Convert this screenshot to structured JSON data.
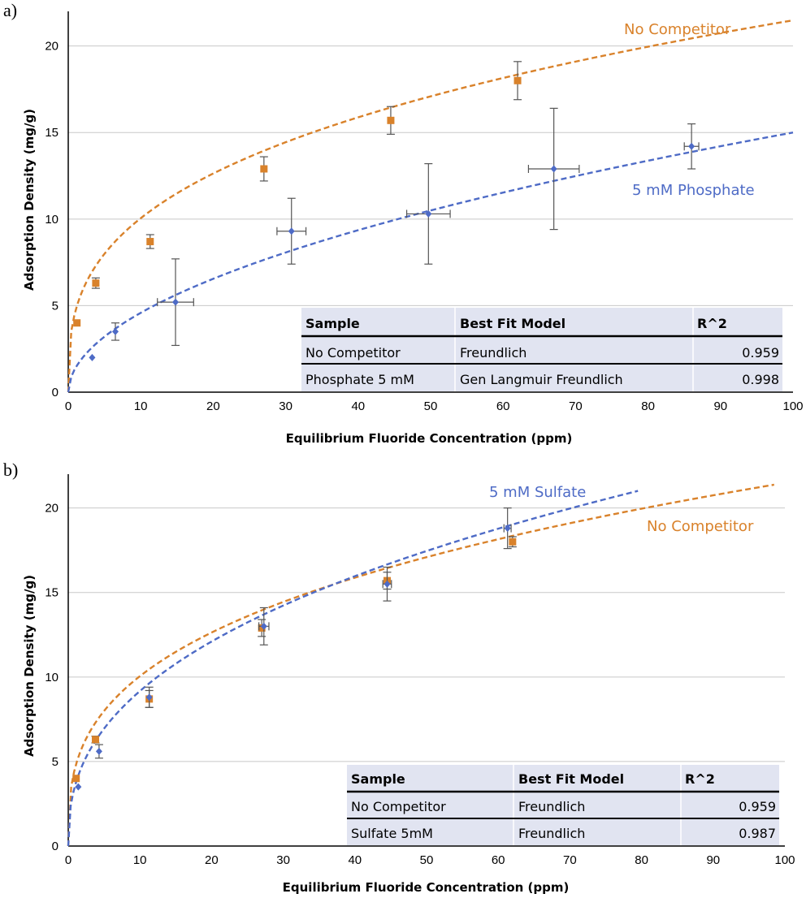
{
  "chart_data": [
    {
      "type": "scatter",
      "panel_label": "a)",
      "xlabel": "Equilibrium Fluoride Concentration (ppm)",
      "ylabel": "Adsorption Density (mg/g)",
      "xlim": [
        0,
        100
      ],
      "ylim": [
        0,
        22
      ],
      "x_ticks": [
        "0",
        "10",
        "20",
        "30",
        "40",
        "50",
        "60",
        "70",
        "80",
        "90",
        "100"
      ],
      "y_ticks": [
        "0",
        "5",
        "10",
        "15",
        "20"
      ],
      "grid": true,
      "series": [
        {
          "name": "No Competitor",
          "color": "#d9822b",
          "marker": "square",
          "points": [
            {
              "x": 1.2,
              "y": 4.0,
              "yerr": 0,
              "xerr": 0
            },
            {
              "x": 3.8,
              "y": 6.3,
              "yerr": 0.3,
              "xerr": 0
            },
            {
              "x": 11.3,
              "y": 8.7,
              "yerr": 0.4,
              "xerr": 0
            },
            {
              "x": 27.0,
              "y": 12.9,
              "yerr": 0.7,
              "xerr": 0
            },
            {
              "x": 44.5,
              "y": 15.7,
              "yerr": 0.8,
              "xerr": 0
            },
            {
              "x": 62.0,
              "y": 18.0,
              "yerr": 1.1,
              "xerr": 0
            }
          ],
          "fit": {
            "model": "freundlich",
            "K": 4.7,
            "n": 0.33,
            "xmax": 100
          }
        },
        {
          "name": "5 mM Phosphate",
          "color": "#4e6bc6",
          "marker": "diamond",
          "points": [
            {
              "x": 3.3,
              "y": 2.0,
              "yerr": 0,
              "xerr": 0
            },
            {
              "x": 6.5,
              "y": 3.5,
              "yerr": 0.5,
              "xerr": 0
            },
            {
              "x": 14.8,
              "y": 5.2,
              "yerr": 2.5,
              "xerr": 2.5
            },
            {
              "x": 30.8,
              "y": 9.3,
              "yerr": 1.9,
              "xerr": 2.0
            },
            {
              "x": 49.7,
              "y": 10.3,
              "yerr": 2.9,
              "xerr": 3.0
            },
            {
              "x": 67.0,
              "y": 12.9,
              "yerr": 3.5,
              "xerr": 3.5
            },
            {
              "x": 86.0,
              "y": 14.2,
              "yerr": 1.3,
              "xerr": 1.0
            }
          ],
          "fit": {
            "model": "freundlich",
            "K": 1.4,
            "n": 0.515,
            "xmax": 100
          }
        }
      ],
      "curve_labels": [
        "No Competitor",
        "5 mM Phosphate"
      ],
      "table": {
        "headers": [
          "Sample",
          "Best Fit Model",
          "R^2"
        ],
        "rows": [
          {
            "sample": "No Competitor",
            "model": "Freundlich",
            "r2": "0.959",
            "color": "#d9822b"
          },
          {
            "sample": "Phosphate 5 mM",
            "model": "Gen Langmuir Freundlich",
            "r2": "0.998",
            "color": "#4e6bc6"
          }
        ]
      }
    },
    {
      "type": "scatter",
      "panel_label": "b)",
      "xlabel": "Equilibrium Fluoride Concentration (ppm)",
      "ylabel": "Adsorption Density (mg/g)",
      "xlim": [
        0,
        100
      ],
      "ylim": [
        0,
        22
      ],
      "x_ticks": [
        "0",
        "10",
        "20",
        "30",
        "40",
        "50",
        "60",
        "70",
        "80",
        "90",
        "100"
      ],
      "y_ticks": [
        "0",
        "5",
        "10",
        "15",
        "20"
      ],
      "grid": true,
      "series": [
        {
          "name": "No Competitor",
          "color": "#d9822b",
          "marker": "square",
          "points": [
            {
              "x": 1.1,
              "y": 4.0,
              "yerr": 0,
              "xerr": 0
            },
            {
              "x": 3.8,
              "y": 6.3,
              "yerr": 0.2,
              "xerr": 0
            },
            {
              "x": 11.3,
              "y": 8.7,
              "yerr": 0.5,
              "xerr": 0
            },
            {
              "x": 27.0,
              "y": 12.9,
              "yerr": 0.5,
              "xerr": 0
            },
            {
              "x": 44.5,
              "y": 15.7,
              "yerr": 0.5,
              "xerr": 0
            },
            {
              "x": 62.0,
              "y": 18.0,
              "yerr": 0.3,
              "xerr": 0
            }
          ],
          "fit": {
            "model": "freundlich",
            "K": 4.7,
            "n": 0.33,
            "xmax": 98.5
          }
        },
        {
          "name": "5 mM Sulfate",
          "color": "#4e6bc6",
          "marker": "diamond",
          "points": [
            {
              "x": 1.4,
              "y": 3.5,
              "yerr": 0,
              "xerr": 0
            },
            {
              "x": 4.3,
              "y": 5.6,
              "yerr": 0.4,
              "xerr": 0
            },
            {
              "x": 11.3,
              "y": 8.8,
              "yerr": 0.6,
              "xerr": 0
            },
            {
              "x": 27.3,
              "y": 13.0,
              "yerr": 1.1,
              "xerr": 0.7
            },
            {
              "x": 44.5,
              "y": 15.5,
              "yerr": 1.0,
              "xerr": 0.6
            },
            {
              "x": 61.3,
              "y": 18.8,
              "yerr": 1.2,
              "xerr": 0.5
            }
          ],
          "fit": {
            "model": "freundlich",
            "K": 3.65,
            "n": 0.4,
            "xmax": 79.5
          }
        }
      ],
      "curve_labels": [
        "5 mM Sulfate",
        "No Competitor"
      ],
      "table": {
        "headers": [
          "Sample",
          "Best Fit Model",
          "R^2"
        ],
        "rows": [
          {
            "sample": "No Competitor",
            "model": "Freundlich",
            "r2": "0.959",
            "color": "#d9822b"
          },
          {
            "sample": "Sulfate 5mM",
            "model": "Freundlich",
            "r2": "0.987",
            "color": "#4e6bc6"
          }
        ]
      }
    }
  ]
}
